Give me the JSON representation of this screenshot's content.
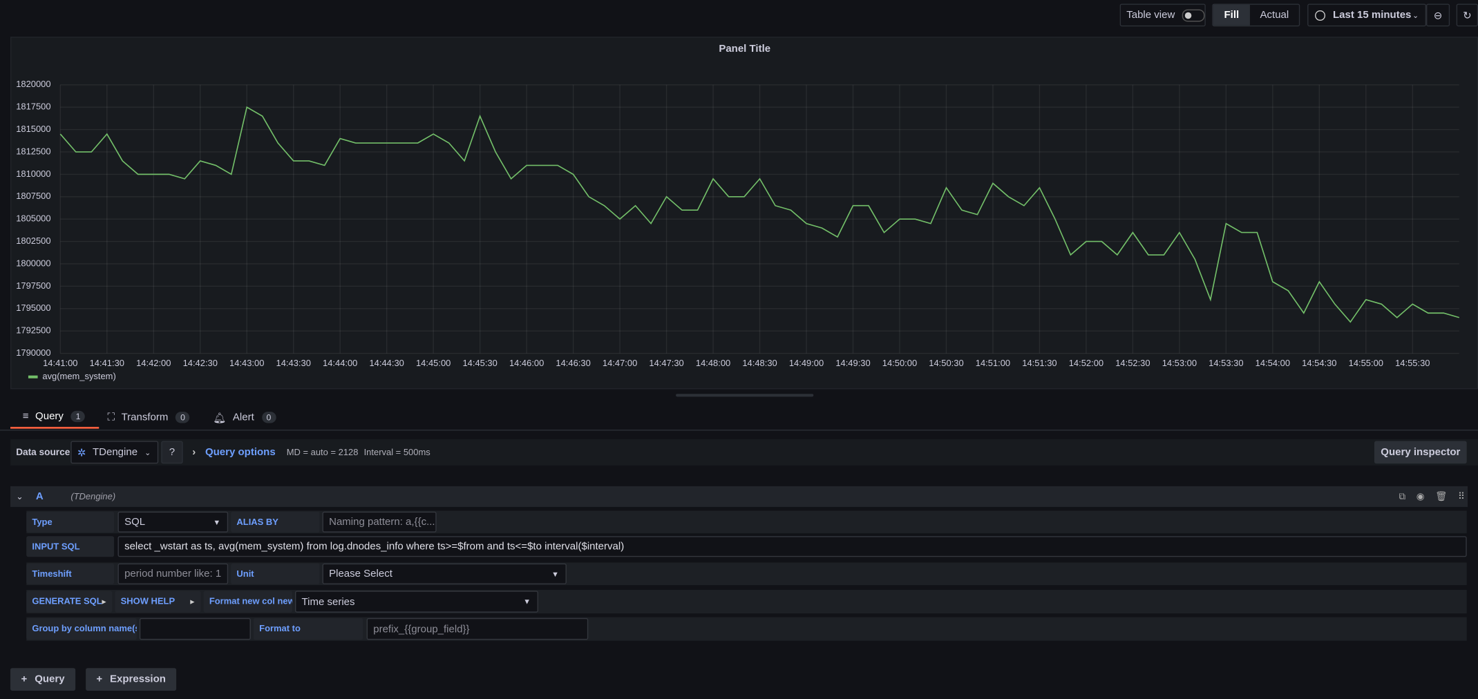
{
  "toolbar": {
    "table_view": "Table view",
    "fill": "Fill",
    "actual": "Actual",
    "time_range": "Last 15 minutes"
  },
  "chart_data": {
    "type": "line",
    "title": "Panel Title",
    "x": [
      "14:41:00",
      "14:41:10",
      "14:41:20",
      "14:41:30",
      "14:41:40",
      "14:41:50",
      "14:42:00",
      "14:42:10",
      "14:42:20",
      "14:42:30",
      "14:42:40",
      "14:42:50",
      "14:43:00",
      "14:43:10",
      "14:43:20",
      "14:43:30",
      "14:43:40",
      "14:43:50",
      "14:44:00",
      "14:44:10",
      "14:44:20",
      "14:44:30",
      "14:44:40",
      "14:44:50",
      "14:45:00",
      "14:45:10",
      "14:45:20",
      "14:45:30",
      "14:45:40",
      "14:45:50",
      "14:46:00",
      "14:46:10",
      "14:46:20",
      "14:46:30",
      "14:46:40",
      "14:46:50",
      "14:47:00",
      "14:47:10",
      "14:47:20",
      "14:47:30",
      "14:47:40",
      "14:47:50",
      "14:48:00",
      "14:48:10",
      "14:48:20",
      "14:48:30",
      "14:48:40",
      "14:48:50",
      "14:49:00",
      "14:49:10",
      "14:49:20",
      "14:49:30",
      "14:49:40",
      "14:49:50",
      "14:50:00",
      "14:50:10",
      "14:50:20",
      "14:50:30",
      "14:50:40",
      "14:50:50",
      "14:51:00",
      "14:51:10",
      "14:51:20",
      "14:51:30",
      "14:51:40",
      "14:51:50",
      "14:52:00",
      "14:52:10",
      "14:52:20",
      "14:52:30",
      "14:52:40",
      "14:52:50",
      "14:53:00",
      "14:53:10",
      "14:53:20",
      "14:53:30",
      "14:53:40",
      "14:53:50",
      "14:54:00",
      "14:54:10",
      "14:54:20",
      "14:54:30",
      "14:54:40",
      "14:54:50",
      "14:55:00",
      "14:55:10",
      "14:55:20",
      "14:55:30",
      "14:55:40",
      "14:55:50",
      "14:56:00"
    ],
    "series": [
      {
        "name": "avg(mem_system)",
        "color": "#73bf69",
        "values": [
          1814500,
          1812500,
          1812500,
          1814500,
          1811500,
          1810000,
          1810000,
          1810000,
          1809500,
          1811500,
          1811000,
          1810000,
          1817500,
          1816500,
          1813500,
          1811500,
          1811500,
          1811000,
          1814000,
          1813500,
          1813500,
          1813500,
          1813500,
          1813500,
          1814500,
          1813500,
          1811500,
          1816500,
          1812500,
          1809500,
          1811000,
          1811000,
          1811000,
          1810000,
          1807500,
          1806500,
          1805000,
          1806500,
          1804500,
          1807500,
          1806000,
          1806000,
          1809500,
          1807500,
          1807500,
          1809500,
          1806500,
          1806000,
          1804500,
          1804000,
          1803000,
          1806500,
          1806500,
          1803500,
          1805000,
          1805000,
          1804500,
          1808500,
          1806000,
          1805500,
          1809000,
          1807500,
          1806500,
          1808500,
          1805000,
          1801000,
          1802500,
          1802500,
          1801000,
          1803500,
          1801000,
          1801000,
          1803500,
          1800500,
          1796000,
          1804500,
          1803500,
          1803500,
          1798000,
          1797000,
          1794500,
          1798000,
          1795500,
          1793500,
          1796000,
          1795500,
          1794000,
          1795500,
          1794500,
          1794500,
          1794000
        ]
      }
    ],
    "xlim": [
      "14:41:00",
      "14:56:00"
    ],
    "xticks": [
      "14:41:00",
      "14:41:30",
      "14:42:00",
      "14:42:30",
      "14:43:00",
      "14:43:30",
      "14:44:00",
      "14:44:30",
      "14:45:00",
      "14:45:30",
      "14:46:00",
      "14:46:30",
      "14:47:00",
      "14:47:30",
      "14:48:00",
      "14:48:30",
      "14:49:00",
      "14:49:30",
      "14:50:00",
      "14:50:30",
      "14:51:00",
      "14:51:30",
      "14:52:00",
      "14:52:30",
      "14:53:00",
      "14:53:30",
      "14:54:00",
      "14:54:30",
      "14:55:00",
      "14:55:30"
    ],
    "ylim": [
      1790000,
      1820000
    ],
    "yticks": [
      1790000,
      1792500,
      1795000,
      1797500,
      1800000,
      1802500,
      1805000,
      1807500,
      1810000,
      1812500,
      1815000,
      1817500,
      1820000
    ],
    "grid": true,
    "legend": "bottom-left"
  },
  "tabs": [
    {
      "label": "Query",
      "count": 1
    },
    {
      "label": "Transform",
      "count": 0
    },
    {
      "label": "Alert",
      "count": 0
    }
  ],
  "query_bar": {
    "data_source_label": "Data source",
    "data_source": "TDengine",
    "query_options": "Query options",
    "md": "MD = auto = 2128",
    "interval": "Interval = 500ms",
    "inspector": "Query inspector"
  },
  "query": {
    "ref": "A",
    "source": "(TDengine)",
    "type_label": "Type",
    "type": "SQL",
    "alias_label": "ALIAS BY",
    "alias_placeholder": "Naming pattern: a,{{c...",
    "input_sql_label": "INPUT SQL",
    "sql": "select _wstart as ts, avg(mem_system) from log.dnodes_info where ts>=$from and ts<=$to interval($interval)",
    "timeshift_label": "Timeshift",
    "timeshift_placeholder": "period number like: 1",
    "unit_label": "Unit",
    "unit": "Please Select",
    "generate_sql": "GENERATE SQL",
    "show_help": "SHOW HELP",
    "format_label": "Format new col new",
    "format": "Time series",
    "group_label": "Group by column name(s)",
    "format_to_label": "Format to",
    "format_to": "prefix_{{group_field}}"
  },
  "buttons": {
    "add_query": "Query",
    "add_expression": "Expression"
  }
}
